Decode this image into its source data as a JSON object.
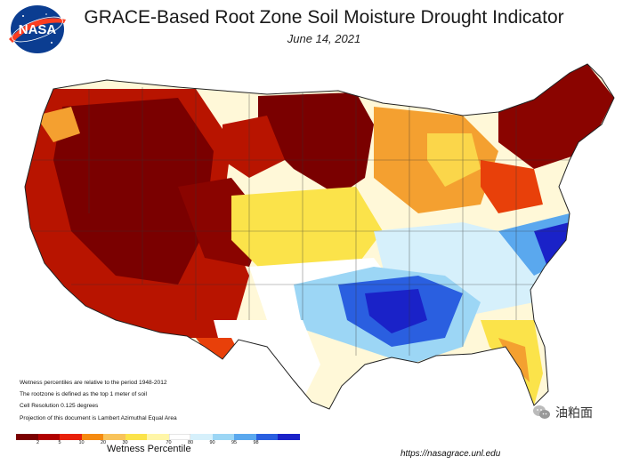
{
  "header": {
    "logo_text": "NASA",
    "title": "GRACE-Based Root Zone Soil  Moisture Drought Indicator",
    "date": "June 14, 2021"
  },
  "notes": [
    "Wetness percentiles are relative to the period 1948-2012",
    "The rootzone is defined as the top 1 meter of soil",
    "Cell Resolution 0.125 degrees",
    "Projection of this document is Lambert Azimuthal Equal Area"
  ],
  "legend": {
    "title": "Wetness Percentile",
    "colors": [
      "#7a0000",
      "#b00000",
      "#e8200a",
      "#f58a10",
      "#f8c35a",
      "#fbe34a",
      "#fff6a8",
      "#ffffff",
      "#d6f0fb",
      "#9cd6f5",
      "#5aa8ee",
      "#2a5fe0",
      "#1a22c8"
    ],
    "ticks": [
      "2",
      "5",
      "10",
      "20",
      "30",
      "70",
      "80",
      "90",
      "95",
      "98"
    ]
  },
  "source": "https://nasagrace.unl.edu",
  "watermark": "油粕面",
  "colors": {
    "extreme_dry": "#7a0000",
    "dry": "#c01a00",
    "moderate_dry": "#f07a10",
    "abnormal_dry": "#fbd64a",
    "normal": "#ffffff",
    "wet": "#8cc8f2",
    "very_wet": "#1a2ac8",
    "nasa_blue": "#0b3d91",
    "nasa_red": "#fc3d21"
  }
}
